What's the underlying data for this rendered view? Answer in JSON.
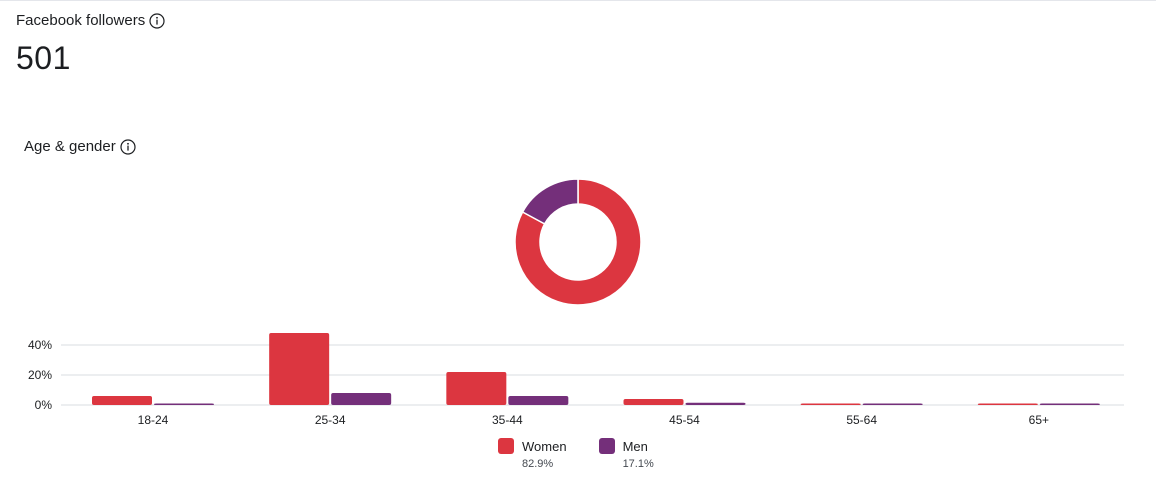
{
  "header": {
    "title": "Facebook followers",
    "count": "501"
  },
  "section": {
    "title": "Age & gender"
  },
  "colors": {
    "women": "#dc3640",
    "men": "#742f7a",
    "grid": "#dadde1"
  },
  "icons": {
    "info": "info-icon"
  },
  "chart_data": [
    {
      "type": "pie",
      "labels": [
        "Women",
        "Men"
      ],
      "values": [
        82.9,
        17.1
      ]
    },
    {
      "type": "bar",
      "categories": [
        "18-24",
        "25-34",
        "35-44",
        "45-54",
        "55-64",
        "65+"
      ],
      "series": [
        {
          "name": "Women",
          "values": [
            6,
            48,
            22,
            4,
            1,
            0.5
          ]
        },
        {
          "name": "Men",
          "values": [
            1,
            8,
            6,
            1.5,
            0.5,
            0.5
          ]
        }
      ],
      "yticks": [
        "0%",
        "20%",
        "40%"
      ],
      "ylim": [
        0,
        50
      ],
      "grid": true,
      "legend_position": "bottom-center"
    }
  ],
  "legend": [
    {
      "label": "Women",
      "pct": "82.9%"
    },
    {
      "label": "Men",
      "pct": "17.1%"
    }
  ]
}
